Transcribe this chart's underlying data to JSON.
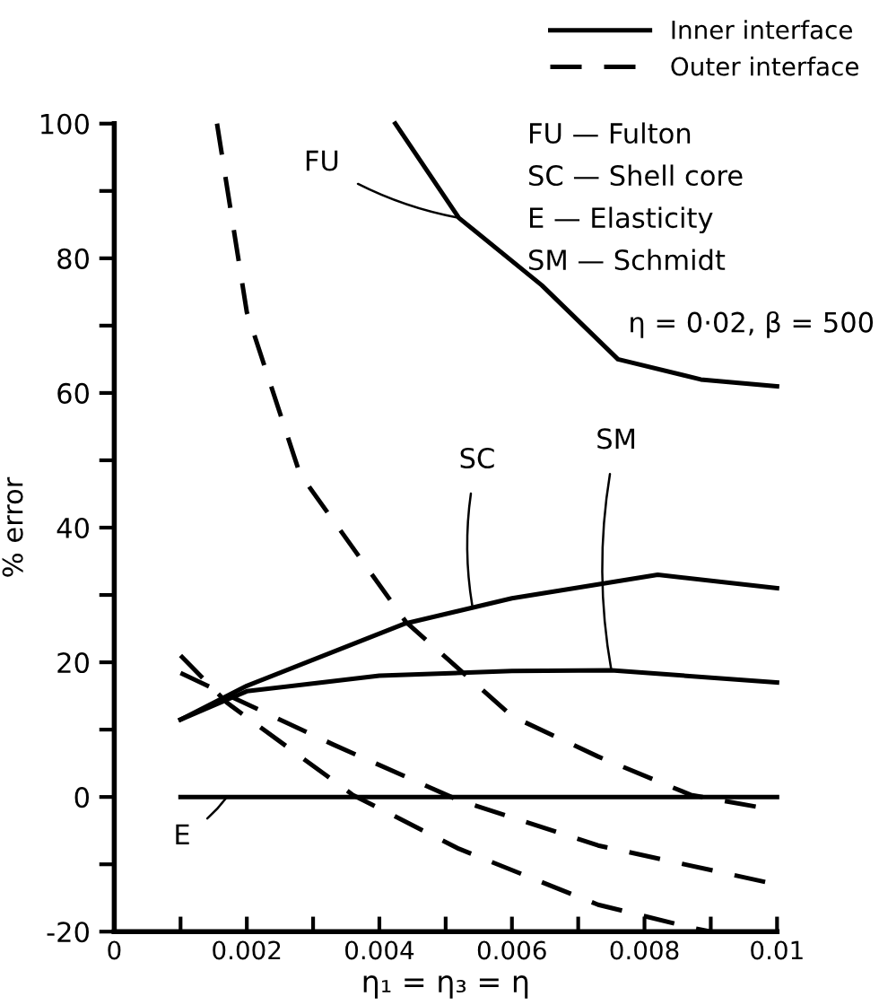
{
  "chart_data": {
    "type": "line",
    "xlabel": "η₁ = η₃ = η",
    "ylabel": "% error",
    "xlim": [
      0,
      0.01
    ],
    "ylim": [
      -20,
      100
    ],
    "xticks": [
      0,
      {
        "value": 0.001,
        "label": null
      },
      0.002,
      {
        "value": 0.003,
        "label": null
      },
      0.004,
      {
        "value": 0.005,
        "label": null
      },
      0.006,
      {
        "value": 0.007,
        "label": null
      },
      0.008,
      {
        "value": 0.009,
        "label": null
      },
      0.01
    ],
    "yticks": [
      -20,
      {
        "value": -10,
        "label": null
      },
      0,
      {
        "value": 10,
        "label": null
      },
      20,
      {
        "value": 30,
        "label": null
      },
      40,
      {
        "value": 50,
        "label": null
      },
      60,
      {
        "value": 70,
        "label": null
      },
      80,
      {
        "value": 90,
        "label": null
      },
      100
    ],
    "grid": false,
    "legend": "top right",
    "marker": "none",
    "series": [
      {
        "name": "Inner interface",
        "color": "#000000",
        "line_style": "solid",
        "x": [
          0.00424,
          0.0052,
          0.00645,
          0.0076,
          0.00885,
          0.01
        ],
        "values": [
          100,
          86,
          76,
          65,
          62,
          61
        ]
      },
      {
        "color": "#000000",
        "line_style": "solid",
        "x": [
          0.001,
          0.002,
          0.00437,
          0.006,
          0.0082,
          0.01
        ],
        "values": [
          11.5,
          16.5,
          25.7,
          29.5,
          33,
          31
        ]
      },
      {
        "color": "#000000",
        "line_style": "solid",
        "x": [
          0.001,
          0.002,
          0.004,
          0.006,
          0.0075,
          0.01
        ],
        "values": [
          11.5,
          15.7,
          18,
          18.7,
          18.8,
          17
        ]
      },
      {
        "color": "#000000",
        "line_style": "solid",
        "x": [
          0.001,
          0.01
        ],
        "values": [
          0,
          0
        ]
      },
      {
        "name": "Outer interface",
        "color": "#000000",
        "line_style": "dashed",
        "x": [
          0.00155,
          0.002,
          0.0028,
          0.0044,
          0.006,
          0.0073,
          0.0087,
          0.01
        ],
        "values": [
          100,
          72,
          48,
          26,
          12,
          6,
          0.3,
          -2
        ]
      },
      {
        "color": "#000000",
        "line_style": "dashed",
        "x": [
          0.001,
          0.0033,
          0.0052,
          0.0073,
          0.01
        ],
        "values": [
          18.4,
          7.8,
          -0.5,
          -7.2,
          -13
        ]
      },
      {
        "color": "#000000",
        "line_style": "dashed",
        "x": [
          0.001,
          0.0017,
          0.0036,
          0.0052,
          0.0073,
          0.0087,
          0.009
        ],
        "values": [
          21,
          14,
          0.3,
          -7.7,
          -16,
          -19.4,
          -20
        ]
      }
    ],
    "annotations": [
      {
        "text": "FU",
        "x": 0.0052,
        "y": 86
      },
      {
        "text": "SC",
        "x": 0.0054,
        "y": 28.5
      },
      {
        "text": "SM",
        "x": 0.0075,
        "y": 18.8
      },
      {
        "text": "E",
        "x": 0.0017,
        "y": 0
      },
      "FU — Fulton",
      "SC — Shell core",
      "E — Elasticity",
      "SM — Schmidt",
      "η = 0·02, β = 500"
    ]
  }
}
